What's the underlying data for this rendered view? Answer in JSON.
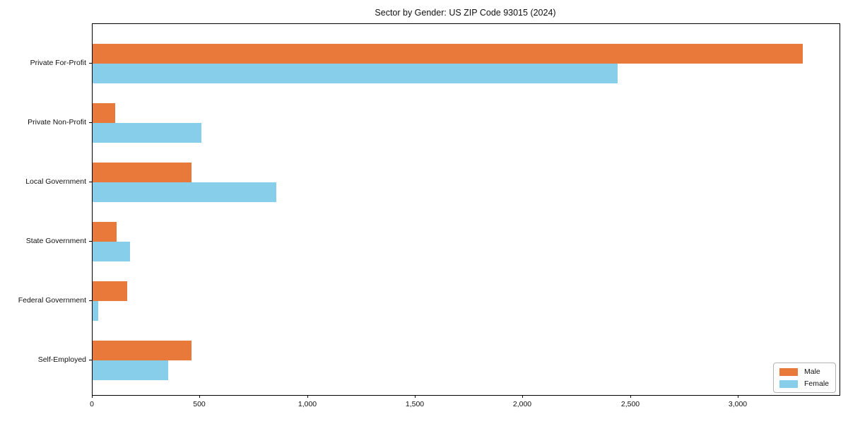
{
  "chart_data": {
    "type": "bar",
    "orientation": "horizontal",
    "title": "Sector by Gender: US ZIP Code 93015 (2024)",
    "categories": [
      "Private For-Profit",
      "Private Non-Profit",
      "Local Government",
      "State Government",
      "Federal Government",
      "Self-Employed"
    ],
    "series": [
      {
        "name": "Male",
        "color": "#e8793b",
        "values": [
          3300,
          105,
          460,
          110,
          160,
          460
        ]
      },
      {
        "name": "Female",
        "color": "#87ceeb",
        "values": [
          2440,
          505,
          855,
          175,
          25,
          350
        ]
      }
    ],
    "xlabel": "",
    "ylabel": "",
    "xlim": [
      0,
      3470
    ],
    "x_ticks": [
      0,
      500,
      1000,
      1500,
      2000,
      2500,
      3000
    ],
    "x_tick_labels": [
      "0",
      "500",
      "1,000",
      "1,500",
      "2,000",
      "2,500",
      "3,000"
    ],
    "grid": false,
    "legend_position": "lower right"
  }
}
